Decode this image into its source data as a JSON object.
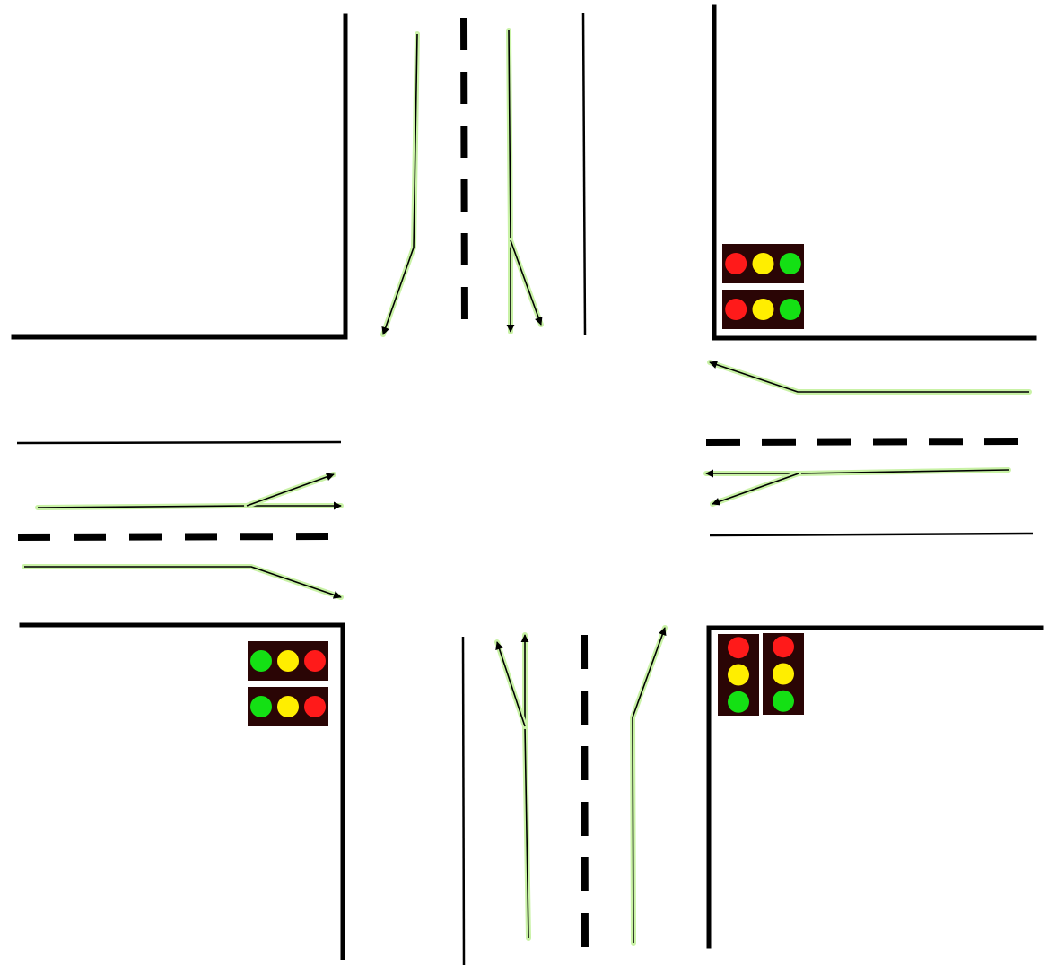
{
  "signal_colors": {
    "housing": "#2a0505",
    "red": "#ff1a1a",
    "yellow": "#ffee00",
    "green": "#14e014"
  },
  "arrow_color": "#000000",
  "arrow_glow_color": "#c9f2a6",
  "signals": [
    {
      "name": "signal-ne-1",
      "order": [
        "red",
        "yellow",
        "green"
      ]
    },
    {
      "name": "signal-ne-2",
      "order": [
        "red",
        "yellow",
        "green"
      ]
    },
    {
      "name": "signal-sw-1",
      "order": [
        "green",
        "yellow",
        "red"
      ]
    },
    {
      "name": "signal-sw-2",
      "order": [
        "green",
        "yellow",
        "red"
      ]
    },
    {
      "name": "signal-se-1",
      "order": [
        "red",
        "yellow",
        "green"
      ]
    },
    {
      "name": "signal-se-2",
      "order": [
        "red",
        "yellow",
        "green"
      ]
    }
  ]
}
